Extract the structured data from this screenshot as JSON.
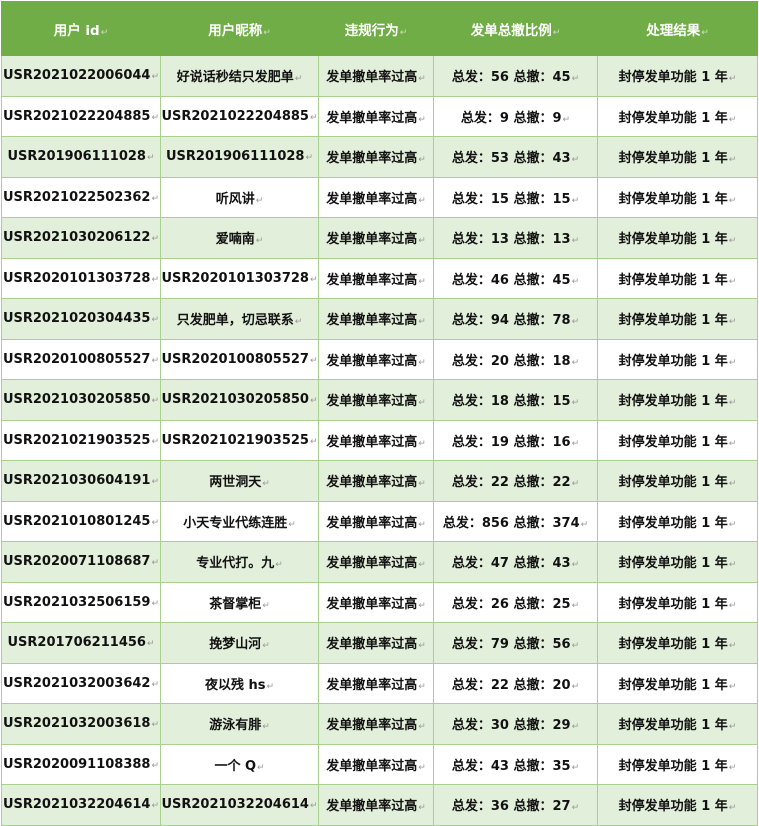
{
  "table": {
    "headers": [
      "用户 id",
      "用户昵称",
      "违规行为",
      "发单总撤比例",
      "处理结果"
    ],
    "rows": [
      [
        "USR2021022006044",
        "好说话秒结只发肥单",
        "发单撤单率过高",
        "总发：56 总撤：45",
        "封停发单功能 1 年"
      ],
      [
        "USR2021022204885",
        "USR2021022204885",
        "发单撤单率过高",
        "总发：9 总撤：9",
        "封停发单功能 1 年"
      ],
      [
        "USR201906111028",
        "USR201906111028",
        "发单撤单率过高",
        "总发：53 总撤：43",
        "封停发单功能 1 年"
      ],
      [
        "USR2021022502362",
        "听风讲",
        "发单撤单率过高",
        "总发：15 总撤：15",
        "封停发单功能 1 年"
      ],
      [
        "USR2021030206122",
        "爱喃南",
        "发单撤单率过高",
        "总发：13 总撤：13",
        "封停发单功能 1 年"
      ],
      [
        "USR2020101303728",
        "USR2020101303728",
        "发单撤单率过高",
        "总发：46 总撤：45",
        "封停发单功能 1 年"
      ],
      [
        "USR2021020304435",
        "只发肥单，切忌联系",
        "发单撤单率过高",
        "总发：94 总撤：78",
        "封停发单功能 1 年"
      ],
      [
        "USR2020100805527",
        "USR2020100805527",
        "发单撤单率过高",
        "总发：20 总撤：18",
        "封停发单功能 1 年"
      ],
      [
        "USR2021030205850",
        "USR2021030205850",
        "发单撤单率过高",
        "总发：18 总撤：15",
        "封停发单功能 1 年"
      ],
      [
        "USR2021021903525",
        "USR2021021903525",
        "发单撤单率过高",
        "总发：19 总撤：16",
        "封停发单功能 1 年"
      ],
      [
        "USR2021030604191",
        "两世洞天",
        "发单撤单率过高",
        "总发：22 总撤：22",
        "封停发单功能 1 年"
      ],
      [
        "USR2021010801245",
        "小天专业代练连胜",
        "发单撤单率过高",
        "总发：856 总撤：374",
        "封停发单功能 1 年"
      ],
      [
        "USR2020071108687",
        "专业代打。九",
        "发单撤单率过高",
        "总发：47 总撤：43",
        "封停发单功能 1 年"
      ],
      [
        "USR2021032506159",
        "茶督掌柜",
        "发单撤单率过高",
        "总发：26 总撤：25",
        "封停发单功能 1 年"
      ],
      [
        "USR201706211456",
        "挽梦山河",
        "发单撤单率过高",
        "总发：79 总撤：56",
        "封停发单功能 1 年"
      ],
      [
        "USR2021032003642",
        "夜以残 hs",
        "发单撤单率过高",
        "总发：22 总撤：20",
        "封停发单功能 1 年"
      ],
      [
        "USR2021032003618",
        "游泳有腓",
        "发单撤单率过高",
        "总发：30 总撤：29",
        "封停发单功能 1 年"
      ],
      [
        "USR2020091108388",
        "一个 Q",
        "发单撤单率过高",
        "总发：43 总撤：35",
        "封停发单功能 1 年"
      ],
      [
        "USR2021032204614",
        "USR2021032204614",
        "发单撤单率过高",
        "总发：36 总撤：27",
        "封停发单功能 1 年"
      ]
    ]
  },
  "colors": {
    "header": "#70ad47",
    "band": "#e2efda",
    "border": "#a9d08e"
  }
}
